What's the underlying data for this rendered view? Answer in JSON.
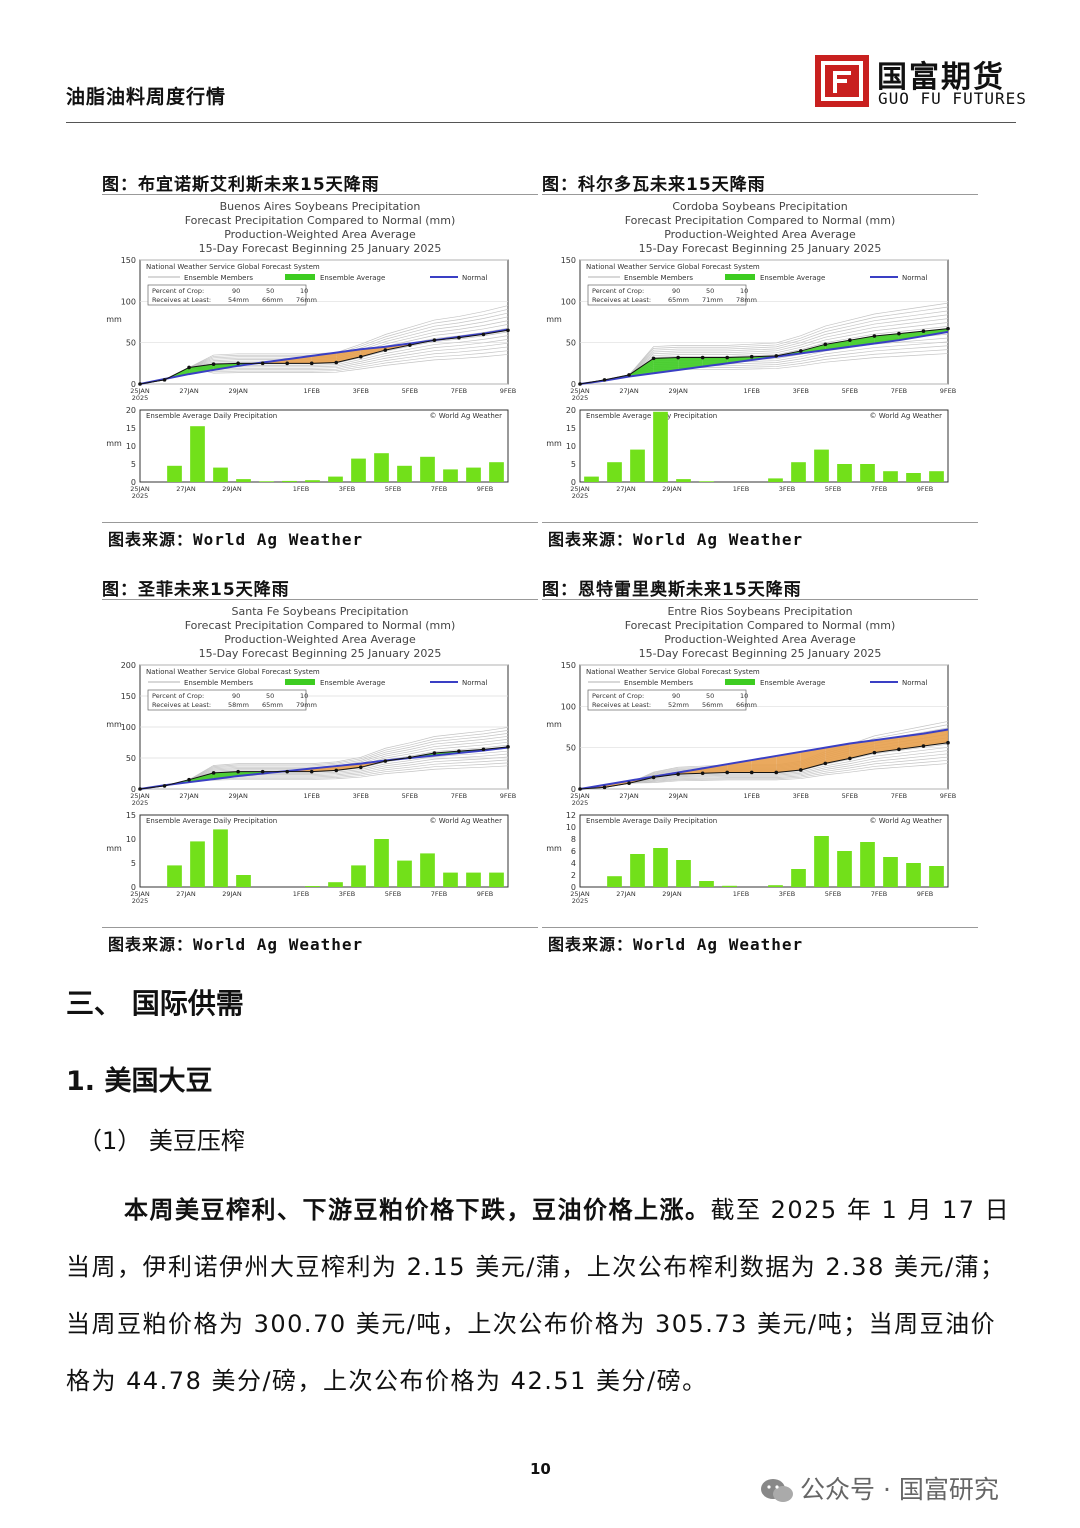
{
  "header": {
    "report_title": "油脂油料周度行情",
    "logo_cn": "国富期货",
    "logo_en": "GUO  FU  FUTURES"
  },
  "panels": [
    {
      "caption": "图：布宜诺斯艾利斯未来15天降雨",
      "source": "图表来源：World Ag Weather",
      "chart_title": [
        "Buenos Aires Soybeans Precipitation",
        "Forecast Precipitation Compared to Normal (mm)",
        "Production-Weighted Area Average",
        "15-Day Forecast Beginning 25 January 2025"
      ],
      "legend_title": "National Weather Service Global Forecast System",
      "legend_items": [
        "Ensemble Members",
        "Ensemble Average",
        "Normal"
      ],
      "pct_label": "Percent of Crop:",
      "pct_values": [
        "90",
        "50",
        "10"
      ],
      "recv_label": "Receives at Least:",
      "recv_values": [
        "54mm",
        "66mm",
        "76mm"
      ],
      "ylabel": "mm",
      "upper_yticks": [
        "150",
        "100",
        "50",
        "0"
      ],
      "upper_ymax": 150,
      "lower_title": "Ensemble Average Daily Precipitation",
      "lower_credit": "© World Ag Weather",
      "lower_yticks": [
        "20",
        "15",
        "10",
        "5",
        "0"
      ],
      "lower_ymax": 20,
      "xticks": [
        "25JAN\n2025",
        "27JAN",
        "29JAN",
        "1FEB",
        "3FEB",
        "5FEB",
        "7FEB",
        "9FEB"
      ]
    },
    {
      "caption": "图：科尔多瓦未来15天降雨",
      "source": "图表来源：World Ag Weather",
      "chart_title": [
        "Cordoba Soybeans Precipitation",
        "Forecast Precipitation Compared to Normal (mm)",
        "Production-Weighted Area Average",
        "15-Day Forecast Beginning 25 January 2025"
      ],
      "legend_title": "National Weather Service Global Forecast System",
      "legend_items": [
        "Ensemble Members",
        "Ensemble Average",
        "Normal"
      ],
      "pct_label": "Percent of Crop:",
      "pct_values": [
        "90",
        "50",
        "10"
      ],
      "recv_label": "Receives at Least:",
      "recv_values": [
        "65mm",
        "71mm",
        "78mm"
      ],
      "ylabel": "mm",
      "upper_yticks": [
        "150",
        "100",
        "50",
        "0"
      ],
      "upper_ymax": 150,
      "lower_title": "Ensemble Average Daily Precipitation",
      "lower_credit": "© World Ag Weather",
      "lower_yticks": [
        "20",
        "15",
        "10",
        "5",
        "0"
      ],
      "lower_ymax": 20,
      "xticks": [
        "25JAN\n2025",
        "27JAN",
        "29JAN",
        "1FEB",
        "3FEB",
        "5FEB",
        "7FEB",
        "9FEB"
      ]
    },
    {
      "caption": "图：圣菲未来15天降雨",
      "source": "图表来源：World Ag Weather",
      "chart_title": [
        "Santa Fe Soybeans Precipitation",
        "Forecast Precipitation Compared to Normal (mm)",
        "Production-Weighted Area Average",
        "15-Day Forecast Beginning 25 January 2025"
      ],
      "legend_title": "National Weather Service Global Forecast System",
      "legend_items": [
        "Ensemble Members",
        "Ensemble Average",
        "Normal"
      ],
      "pct_label": "Percent of Crop:",
      "pct_values": [
        "90",
        "50",
        "10"
      ],
      "recv_label": "Receives at Least:",
      "recv_values": [
        "58mm",
        "65mm",
        "79mm"
      ],
      "ylabel": "mm",
      "upper_yticks": [
        "200",
        "150",
        "100",
        "50",
        "0"
      ],
      "upper_ymax": 200,
      "lower_title": "Ensemble Average Daily Precipitation",
      "lower_credit": "© World Ag Weather",
      "lower_yticks": [
        "15",
        "10",
        "5",
        "0"
      ],
      "lower_ymax": 15,
      "xticks": [
        "25JAN\n2025",
        "27JAN",
        "29JAN",
        "1FEB",
        "3FEB",
        "5FEB",
        "7FEB",
        "9FEB"
      ]
    },
    {
      "caption": "图：恩特雷里奥斯未来15天降雨",
      "source": "图表来源：World Ag Weather",
      "chart_title": [
        "Entre Rios Soybeans Precipitation",
        "Forecast Precipitation Compared to Normal (mm)",
        "Production-Weighted Area Average",
        "15-Day Forecast Beginning 25 January 2025"
      ],
      "legend_title": "National Weather Service Global Forecast System",
      "legend_items": [
        "Ensemble Members",
        "Ensemble Average",
        "Normal"
      ],
      "pct_label": "Percent of Crop:",
      "pct_values": [
        "90",
        "50",
        "10"
      ],
      "recv_label": "Receives at Least:",
      "recv_values": [
        "52mm",
        "56mm",
        "66mm"
      ],
      "ylabel": "mm",
      "upper_yticks": [
        "150",
        "100",
        "50",
        "0"
      ],
      "upper_ymax": 150,
      "lower_title": "Ensemble Average Daily Precipitation",
      "lower_credit": "© World Ag Weather",
      "lower_yticks": [
        "12",
        "10",
        "8",
        "6",
        "4",
        "2",
        "0"
      ],
      "lower_ymax": 12,
      "xticks": [
        "25JAN\n2025",
        "27JAN",
        "29JAN",
        "1FEB",
        "3FEB",
        "5FEB",
        "7FEB",
        "9FEB"
      ]
    }
  ],
  "chart_data": [
    {
      "type": "line",
      "title": "Buenos Aires Soybeans Precipitation",
      "x_days": [
        "25JAN",
        "26JAN",
        "27JAN",
        "28JAN",
        "29JAN",
        "30JAN",
        "31JAN",
        "1FEB",
        "2FEB",
        "3FEB",
        "4FEB",
        "5FEB",
        "6FEB",
        "7FEB",
        "8FEB",
        "9FEB"
      ],
      "ylabel": "mm",
      "ylim": [
        0,
        150
      ],
      "series": [
        {
          "name": "Ensemble Average",
          "values": [
            0,
            5,
            20,
            24,
            25,
            25,
            25,
            25,
            26,
            33,
            41,
            47,
            53,
            56,
            60,
            65
          ]
        },
        {
          "name": "Normal",
          "values": [
            0,
            6,
            12,
            17,
            22,
            26,
            30,
            34,
            38,
            42,
            45,
            49,
            53,
            57,
            61,
            66
          ]
        }
      ],
      "daily_precip": {
        "ylim": [
          0,
          20
        ],
        "values": [
          0,
          4.5,
          15.5,
          4,
          0.8,
          0.2,
          0.3,
          0.5,
          1.5,
          6.5,
          8,
          4.5,
          7,
          3.5,
          4,
          5.5
        ]
      }
    },
    {
      "type": "line",
      "title": "Cordoba Soybeans Precipitation",
      "x_days": [
        "25JAN",
        "26JAN",
        "27JAN",
        "28JAN",
        "29JAN",
        "30JAN",
        "31JAN",
        "1FEB",
        "2FEB",
        "3FEB",
        "4FEB",
        "5FEB",
        "6FEB",
        "7FEB",
        "8FEB",
        "9FEB"
      ],
      "ylabel": "mm",
      "ylim": [
        0,
        150
      ],
      "series": [
        {
          "name": "Ensemble Average",
          "values": [
            0,
            5,
            11,
            31,
            32,
            32,
            32,
            33,
            34,
            40,
            48,
            53,
            58,
            61,
            64,
            67
          ]
        },
        {
          "name": "Normal",
          "values": [
            0,
            4,
            9,
            13,
            17,
            21,
            25,
            29,
            33,
            37,
            41,
            45,
            49,
            53,
            58,
            63
          ]
        }
      ],
      "daily_precip": {
        "ylim": [
          0,
          20
        ],
        "values": [
          1.5,
          5.5,
          9,
          19.5,
          0.8,
          0.2,
          0,
          0,
          1,
          5.5,
          9,
          5,
          5,
          3,
          2.5,
          3
        ]
      }
    },
    {
      "type": "line",
      "title": "Santa Fe Soybeans Precipitation",
      "x_days": [
        "25JAN",
        "26JAN",
        "27JAN",
        "28JAN",
        "29JAN",
        "30JAN",
        "31JAN",
        "1FEB",
        "2FEB",
        "3FEB",
        "4FEB",
        "5FEB",
        "6FEB",
        "7FEB",
        "8FEB",
        "9FEB"
      ],
      "ylabel": "mm",
      "ylim": [
        0,
        200
      ],
      "series": [
        {
          "name": "Ensemble Average",
          "values": [
            0,
            5,
            15,
            26,
            28,
            28,
            28,
            28,
            30,
            35,
            45,
            51,
            58,
            61,
            64,
            68
          ]
        },
        {
          "name": "Normal",
          "values": [
            0,
            6,
            11,
            16,
            21,
            25,
            29,
            33,
            37,
            41,
            46,
            50,
            54,
            58,
            62,
            67
          ]
        }
      ],
      "daily_precip": {
        "ylim": [
          0,
          15
        ],
        "values": [
          0,
          4.5,
          9.5,
          12,
          2.5,
          0,
          0,
          0.2,
          1,
          4.5,
          10,
          5.5,
          7,
          3,
          3,
          3
        ]
      }
    },
    {
      "type": "line",
      "title": "Entre Rios Soybeans Precipitation",
      "x_days": [
        "25JAN",
        "26JAN",
        "27JAN",
        "28JAN",
        "29JAN",
        "30JAN",
        "31JAN",
        "1FEB",
        "2FEB",
        "3FEB",
        "4FEB",
        "5FEB",
        "6FEB",
        "7FEB",
        "8FEB",
        "9FEB"
      ],
      "ylabel": "mm",
      "ylim": [
        0,
        150
      ],
      "series": [
        {
          "name": "Ensemble Average",
          "values": [
            0,
            2,
            7,
            14,
            18,
            19,
            20,
            20,
            20,
            23,
            31,
            37,
            44,
            48,
            52,
            56
          ]
        },
        {
          "name": "Normal",
          "values": [
            0,
            5,
            10,
            15,
            20,
            25,
            30,
            35,
            40,
            45,
            50,
            55,
            59,
            63,
            67,
            72
          ]
        }
      ],
      "daily_precip": {
        "ylim": [
          0,
          12
        ],
        "values": [
          0,
          1.8,
          5.5,
          6.5,
          4.5,
          1,
          0.2,
          0,
          0.3,
          3,
          8.5,
          6,
          7.5,
          5,
          4,
          3.5
        ]
      }
    }
  ],
  "section": {
    "heading": "三、 国际供需",
    "sub_heading": "1. 美国大豆",
    "sub_sub_heading": "（1） 美豆压榨",
    "lead": "本周美豆榨利、下游豆粕价格下跌，豆油价格上涨。",
    "body": "截至 2025 年 1 月 17 日当周，伊利诺伊州大豆榨利为 2.15 美元/蒲，上次公布榨利数据为 2.38 美元/蒲；当周豆粕价格为 300.70 美元/吨，上次公布价格为 305.73 美元/吨；当周豆油价格为 44.78 美分/磅，上次公布价格为 42.51 美分/磅。"
  },
  "footer": {
    "page_number": "10",
    "watermark": "公众号 · 国富研究"
  },
  "colors": {
    "wet_fill": "#3dcc21",
    "dry_fill": "#e8a04d",
    "normal_line": "#3a3fc4",
    "bar_fill": "#72e01a",
    "logo_red": "#c8201f"
  }
}
